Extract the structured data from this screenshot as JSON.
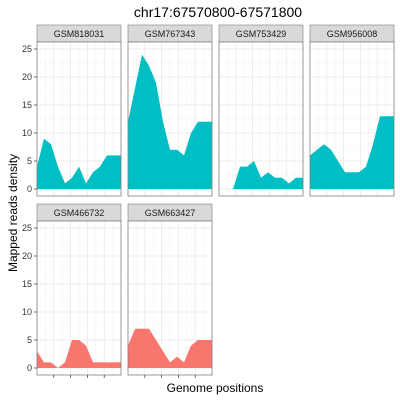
{
  "chart_data": {
    "type": "area",
    "title": "chr17:67570800-67571800",
    "xlabel": "Genome positions",
    "ylabel": "Mapped reads density",
    "ylim": [
      0,
      25
    ],
    "y_ticks": [
      0,
      5,
      10,
      15,
      20,
      25
    ],
    "y_tick_labels": [
      "0",
      "5",
      "10",
      "15",
      "20",
      "25"
    ],
    "grid": true,
    "legend": "none",
    "colors": {
      "teal": "#00BFC4",
      "salmon": "#F8766D"
    },
    "panels": [
      {
        "name": "GSM818031",
        "color": "#00BFC4",
        "x": [
          0,
          1,
          2,
          3,
          4,
          5,
          6,
          7,
          8,
          9,
          10,
          11,
          12
        ],
        "values": [
          4,
          9,
          8,
          4,
          1,
          2,
          4,
          1,
          3,
          4,
          6,
          6,
          6
        ]
      },
      {
        "name": "GSM767343",
        "color": "#00BFC4",
        "x": [
          0,
          1,
          2,
          3,
          4,
          5,
          6,
          7,
          8,
          9,
          10,
          11,
          12
        ],
        "values": [
          12,
          18,
          24,
          22,
          19,
          12,
          7,
          7,
          6,
          10,
          12,
          12,
          12
        ]
      },
      {
        "name": "GSM753429",
        "color": "#00BFC4",
        "x": [
          2,
          3,
          4,
          5,
          6,
          7,
          8,
          9,
          10,
          11,
          12
        ],
        "values": [
          0,
          4,
          4,
          5,
          2,
          3,
          2,
          2,
          1,
          2,
          2
        ]
      },
      {
        "name": "GSM956008",
        "color": "#00BFC4",
        "x": [
          0,
          1,
          2,
          3,
          4,
          5,
          6,
          7,
          8,
          9,
          10,
          11,
          12
        ],
        "values": [
          6,
          7,
          8,
          7,
          5,
          3,
          3,
          3,
          4,
          8,
          13,
          13,
          13
        ]
      },
      {
        "name": "GSM466732",
        "color": "#F8766D",
        "x": [
          0,
          1,
          2,
          3,
          4,
          5,
          6,
          7,
          8,
          9,
          10,
          11,
          12
        ],
        "values": [
          3,
          1,
          1,
          0,
          1,
          5,
          5,
          4,
          1,
          1,
          1,
          1,
          1
        ]
      },
      {
        "name": "GSM663427",
        "color": "#F8766D",
        "x": [
          0,
          1,
          2,
          3,
          4,
          5,
          6,
          7,
          8,
          9,
          10,
          11,
          12
        ],
        "values": [
          4,
          7,
          7,
          7,
          5,
          3,
          1,
          2,
          1,
          4,
          5,
          5,
          5
        ]
      }
    ]
  }
}
